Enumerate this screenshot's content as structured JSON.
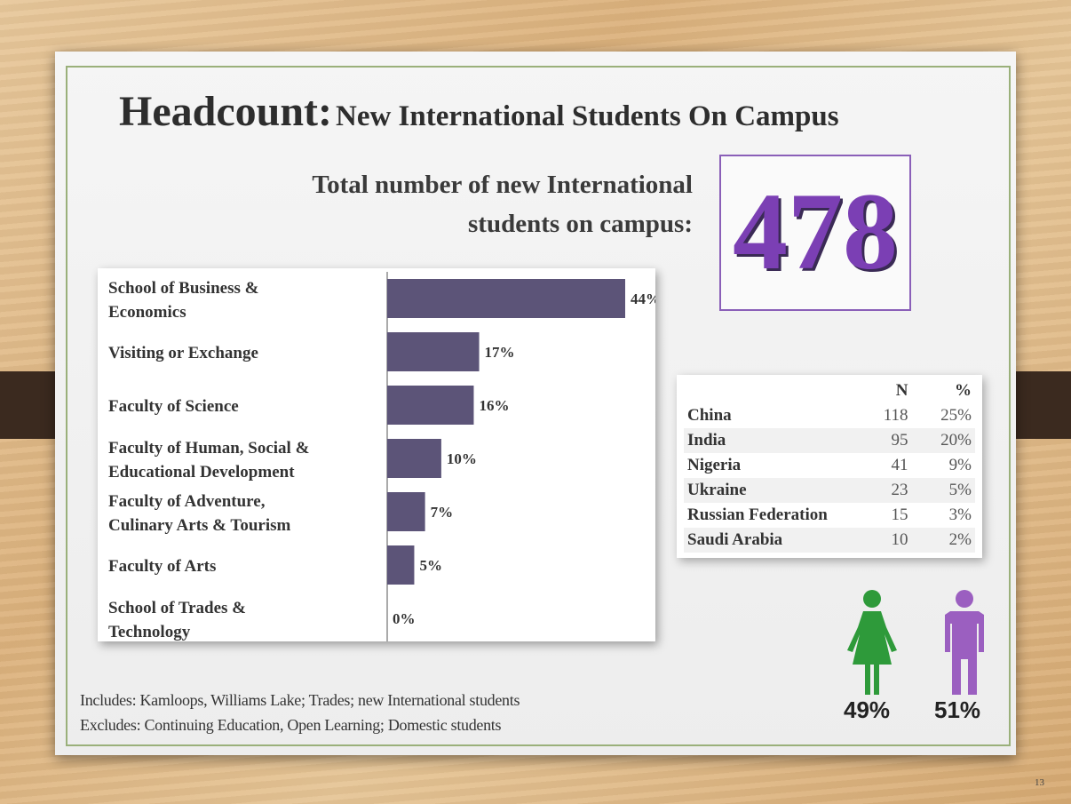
{
  "title": {
    "main": "Headcount:",
    "rest": "New International Students On Campus"
  },
  "total": {
    "label_line1": "Total number of  new International",
    "label_line2": "students on campus:",
    "value": "478",
    "color": "#7b3fb4"
  },
  "chart_data": {
    "type": "bar",
    "orientation": "horizontal",
    "categories": [
      [
        "School of Business &",
        "Economics"
      ],
      [
        "Visiting or Exchange"
      ],
      [
        "Faculty of Science"
      ],
      [
        "Faculty of Human, Social &",
        "Educational Development"
      ],
      [
        "Faculty of Adventure,",
        "Culinary Arts & Tourism"
      ],
      [
        "Faculty of Arts"
      ],
      [
        "School of Trades &",
        "Technology"
      ]
    ],
    "values": [
      44,
      17,
      16,
      10,
      7,
      5,
      0
    ],
    "value_labels": [
      "44%",
      "17%",
      "16%",
      "10%",
      "7%",
      "5%",
      "0%"
    ],
    "bar_color": "#5c5478",
    "xlim": [
      0,
      50
    ],
    "grid": false
  },
  "countries": {
    "headers": [
      "",
      "N",
      "%"
    ],
    "rows": [
      {
        "name": "China",
        "n": "118",
        "pct": "25%"
      },
      {
        "name": "India",
        "n": "95",
        "pct": "20%"
      },
      {
        "name": "Nigeria",
        "n": "41",
        "pct": "9%"
      },
      {
        "name": "Ukraine",
        "n": "23",
        "pct": "5%"
      },
      {
        "name": "Russian Federation",
        "n": "15",
        "pct": "3%"
      },
      {
        "name": "Saudi Arabia",
        "n": "10",
        "pct": "2%"
      }
    ]
  },
  "gender": {
    "female_pct": "49%",
    "male_pct": "51%",
    "female_color": "#2e9a3a",
    "male_color": "#9b5fc0"
  },
  "footnotes": {
    "includes": "Includes: Kamloops, Williams  Lake; Trades; new International students",
    "excludes": "Excludes: Continuing Education, Open Learning; Domestic students"
  },
  "page_number": "13"
}
